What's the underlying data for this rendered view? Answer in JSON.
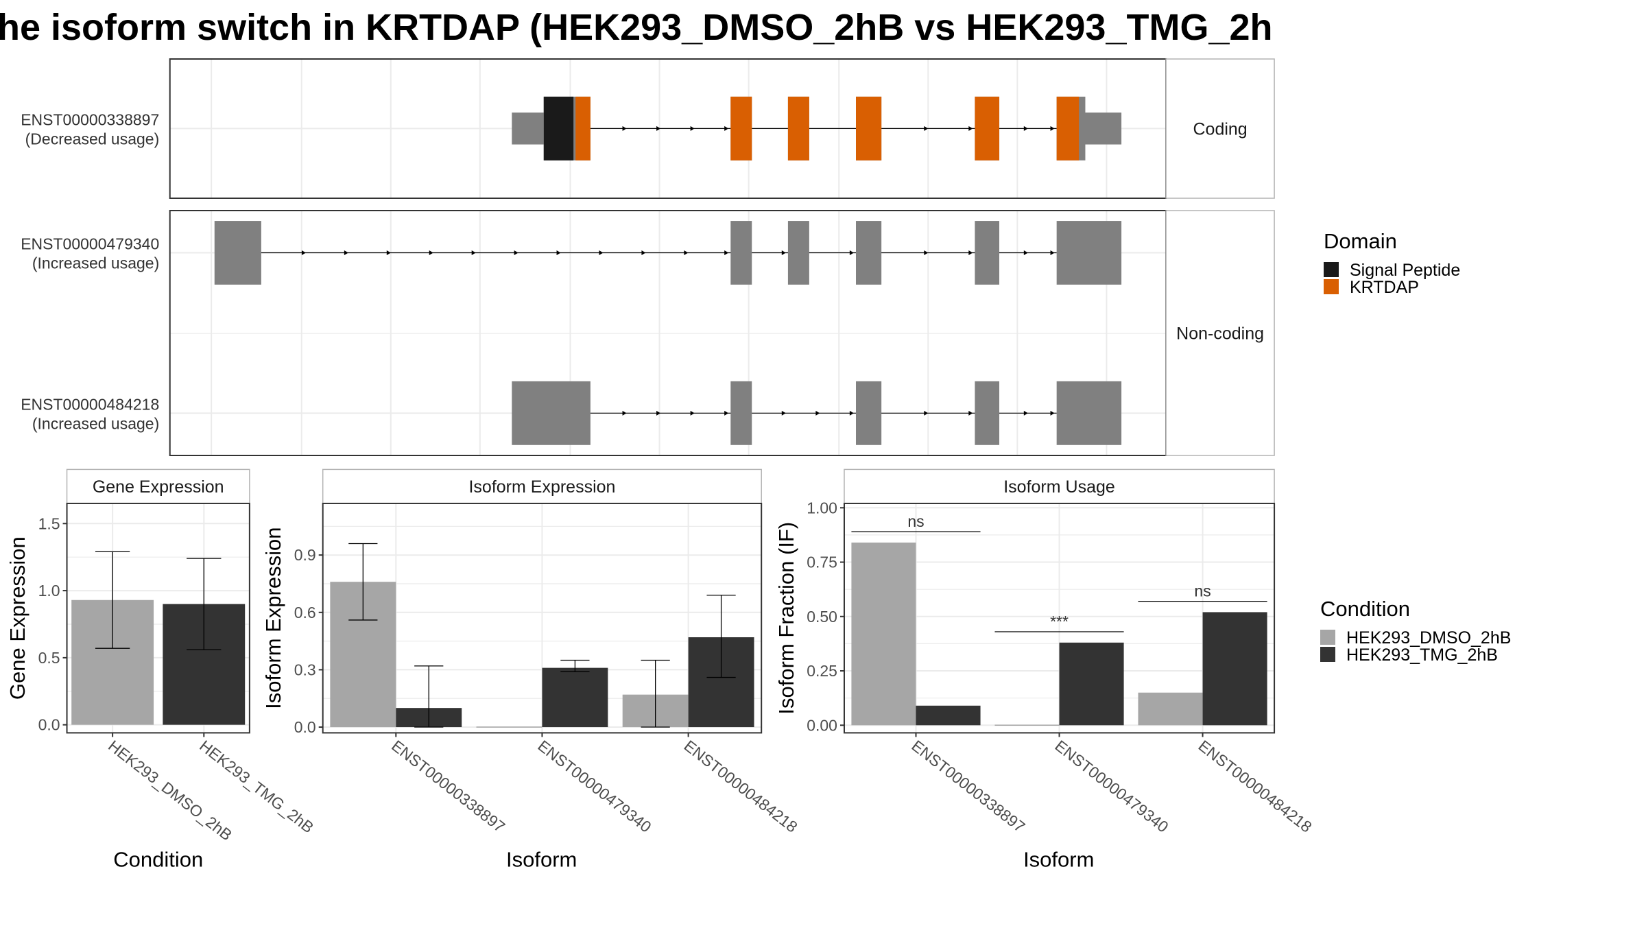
{
  "title": "he isoform switch in KRTDAP (HEK293_DMSO_2hB vs HEK293_TMG_2h",
  "colors": {
    "exon": "#808080",
    "signal_peptide": "#1a1a1a",
    "krtdap": "#d95f02",
    "dmso": "#a6a6a6",
    "tmg": "#333333",
    "grid": "#ebebeb",
    "panel_border": "#333333",
    "strip_border": "#b3b3b3"
  },
  "chart_data": [
    {
      "type": "gene-structure",
      "groups": [
        {
          "label": "Coding",
          "transcripts": [
            0
          ]
        },
        {
          "label": "Non-coding",
          "transcripts": [
            1,
            2
          ]
        }
      ],
      "transcripts": [
        {
          "id": "ENST00000338897",
          "usage": "(Decreased usage)",
          "utr_left": [
            482,
            512
          ],
          "utr_right": [
            1020,
            1056
          ],
          "exons": [
            [
              512,
              556
            ],
            [
              688,
              708
            ],
            [
              742,
              762
            ],
            [
              806,
              830
            ],
            [
              918,
              941
            ],
            [
              995,
              1022
            ]
          ],
          "domains": [
            {
              "name": "Signal Peptide",
              "range": [
                512,
                540
              ]
            },
            {
              "name": "KRTDAP",
              "range": [
                542,
                556
              ]
            },
            {
              "name": "KRTDAP",
              "range": [
                688,
                708
              ]
            },
            {
              "name": "KRTDAP",
              "range": [
                742,
                762
              ]
            },
            {
              "name": "KRTDAP",
              "range": [
                806,
                830
              ]
            },
            {
              "name": "KRTDAP",
              "range": [
                918,
                941
              ]
            },
            {
              "name": "KRTDAP",
              "range": [
                995,
                1016
              ]
            }
          ],
          "arrows": [
            590,
            622,
            654,
            686,
            874,
            916,
            968,
            993
          ],
          "intron": [
            556,
            995
          ]
        },
        {
          "id": "ENST00000479340",
          "usage": "(Increased usage)",
          "exons": [
            [
              202,
              246
            ],
            [
              688,
              708
            ],
            [
              742,
              762
            ],
            [
              806,
              830
            ],
            [
              918,
              941
            ],
            [
              995,
              1056
            ]
          ],
          "domains": [],
          "arrows": [
            288,
            328,
            368,
            408,
            448,
            488,
            528,
            568,
            608,
            648,
            686,
            740,
            804,
            874,
            916,
            968,
            993
          ],
          "intron": [
            246,
            995
          ]
        },
        {
          "id": "ENST00000484218",
          "usage": "(Increased usage)",
          "exons": [
            [
              482,
              556
            ],
            [
              688,
              708
            ],
            [
              806,
              830
            ],
            [
              918,
              941
            ],
            [
              995,
              1056
            ]
          ],
          "domains": [],
          "arrows": [
            590,
            622,
            654,
            686,
            740,
            772,
            804,
            874,
            916,
            968,
            993
          ],
          "intron": [
            556,
            995
          ]
        }
      ],
      "legend": {
        "title": "Domain",
        "entries": [
          "Signal Peptide",
          "KRTDAP"
        ]
      }
    },
    {
      "type": "bar",
      "strip": "Gene Expression",
      "xlabel": "Condition",
      "ylabel": "Gene Expression",
      "ylim": [
        -0.06,
        1.65
      ],
      "yticks": [
        "0.0",
        "0.5",
        "1.0",
        "1.5"
      ],
      "categories": [
        "HEK293_DMSO_2hB",
        "HEK293_TMG_2hB"
      ],
      "series": [
        {
          "name": "HEK293_DMSO_2hB",
          "values": [
            0.93,
            null
          ],
          "err_low": [
            0.57,
            null
          ],
          "err_high": [
            1.29,
            null
          ]
        },
        {
          "name": "HEK293_TMG_2hB",
          "values": [
            null,
            0.9
          ],
          "err_low": [
            null,
            0.56
          ],
          "err_high": [
            null,
            1.24
          ]
        }
      ]
    },
    {
      "type": "bar",
      "strip": "Isoform Expression",
      "xlabel": "Isoform",
      "ylabel": "Isoform Expression",
      "ylim": [
        -0.03,
        1.17
      ],
      "yticks": [
        "0.0",
        "0.3",
        "0.6",
        "0.9"
      ],
      "categories": [
        "ENST00000338897",
        "ENST00000479340",
        "ENST00000484218"
      ],
      "series": [
        {
          "name": "HEK293_DMSO_2hB",
          "values": [
            0.76,
            0.0,
            0.17
          ],
          "err_low": [
            0.56,
            null,
            0.0
          ],
          "err_high": [
            0.96,
            null,
            0.35
          ]
        },
        {
          "name": "HEK293_TMG_2hB",
          "values": [
            0.1,
            0.31,
            0.47
          ],
          "err_low": [
            0.0,
            0.29,
            0.26
          ],
          "err_high": [
            0.32,
            0.35,
            0.69
          ]
        }
      ]
    },
    {
      "type": "bar",
      "strip": "Isoform Usage",
      "xlabel": "Isoform",
      "ylabel": "Isoform Fraction (IF)",
      "ylim": [
        -0.035,
        1.02
      ],
      "yticks": [
        "0.00",
        "0.25",
        "0.50",
        "0.75",
        "1.00"
      ],
      "categories": [
        "ENST00000338897",
        "ENST00000479340",
        "ENST00000484218"
      ],
      "series": [
        {
          "name": "HEK293_DMSO_2hB",
          "values": [
            0.84,
            0.0,
            0.15
          ]
        },
        {
          "name": "HEK293_TMG_2hB",
          "values": [
            0.09,
            0.38,
            0.52
          ]
        }
      ],
      "significance": [
        {
          "category": 0,
          "label": "ns",
          "y": 0.89
        },
        {
          "category": 1,
          "label": "***",
          "y": 0.43
        },
        {
          "category": 2,
          "label": "ns",
          "y": 0.57
        }
      ]
    }
  ],
  "condition_legend": {
    "title": "Condition",
    "entries": [
      "HEK293_DMSO_2hB",
      "HEK293_TMG_2hB"
    ]
  }
}
